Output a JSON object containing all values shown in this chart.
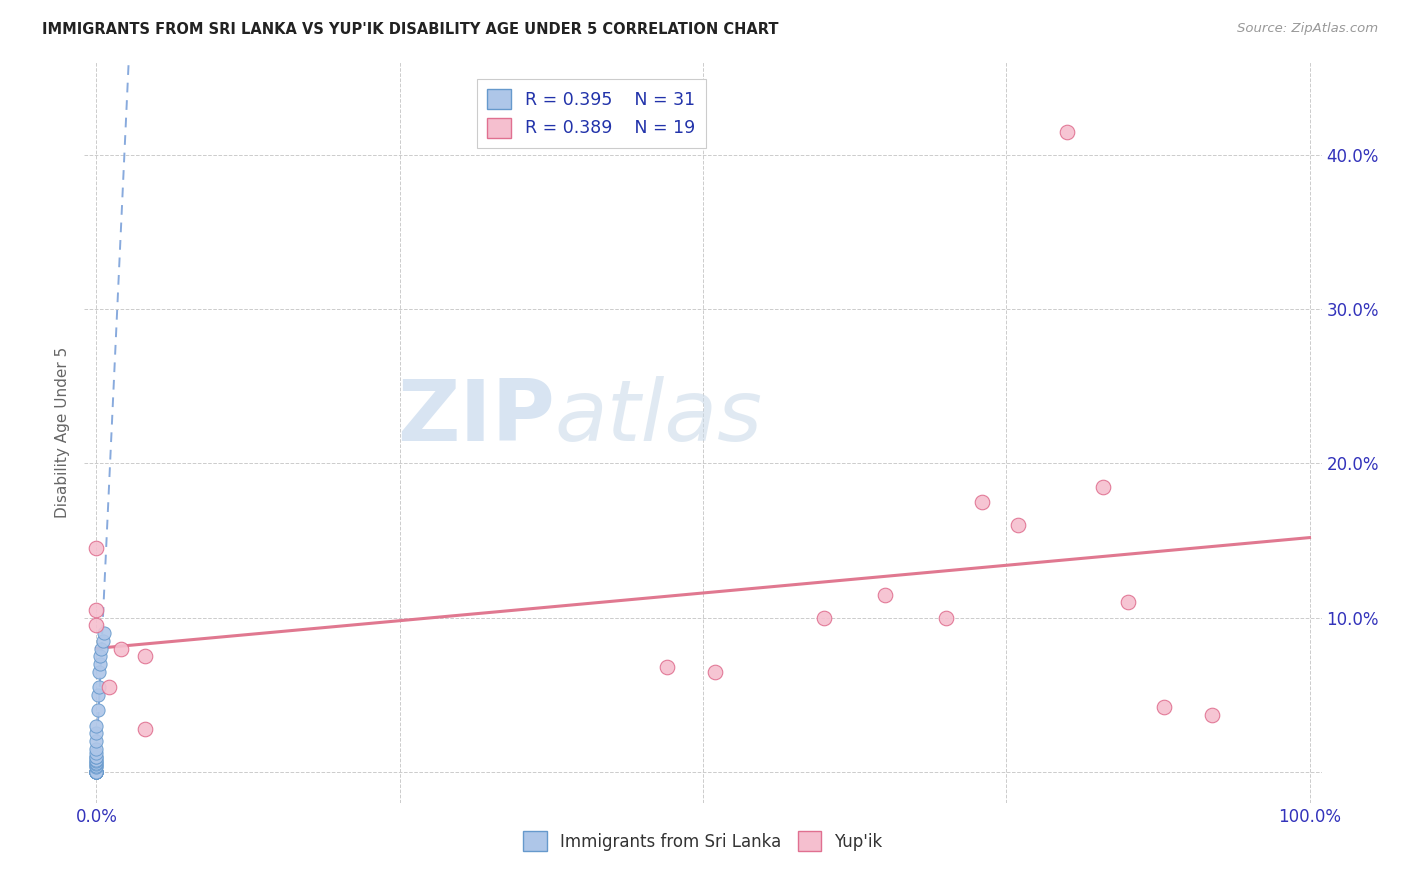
{
  "title": "IMMIGRANTS FROM SRI LANKA VS YUP'IK DISABILITY AGE UNDER 5 CORRELATION CHART",
  "source": "Source: ZipAtlas.com",
  "ylabel": "Disability Age Under 5",
  "xlim": [
    -0.01,
    1.01
  ],
  "ylim": [
    -0.02,
    0.46
  ],
  "watermark_zip": "ZIP",
  "watermark_atlas": "atlas",
  "sri_lanka_x": [
    0.0,
    0.0,
    0.0,
    0.0,
    0.0,
    0.0,
    0.0,
    0.0,
    0.0,
    0.0,
    0.0,
    0.0,
    0.0,
    0.0,
    0.0,
    0.0,
    0.0,
    0.0,
    0.0,
    0.0,
    0.0,
    0.0,
    0.001,
    0.001,
    0.002,
    0.002,
    0.003,
    0.003,
    0.004,
    0.005,
    0.006
  ],
  "sri_lanka_y": [
    0.0,
    0.0,
    0.0,
    0.0,
    0.0,
    0.0,
    0.0,
    0.0,
    0.0,
    0.003,
    0.004,
    0.005,
    0.006,
    0.007,
    0.008,
    0.01,
    0.01,
    0.012,
    0.015,
    0.02,
    0.025,
    0.03,
    0.04,
    0.05,
    0.055,
    0.065,
    0.07,
    0.075,
    0.08,
    0.085,
    0.09
  ],
  "yupik_x": [
    0.0,
    0.0,
    0.0,
    0.01,
    0.02,
    0.04,
    0.04,
    0.47,
    0.51,
    0.6,
    0.65,
    0.7,
    0.73,
    0.76,
    0.8,
    0.83,
    0.85,
    0.88,
    0.92
  ],
  "yupik_y": [
    0.095,
    0.105,
    0.145,
    0.055,
    0.08,
    0.028,
    0.075,
    0.068,
    0.065,
    0.1,
    0.115,
    0.1,
    0.175,
    0.16,
    0.415,
    0.185,
    0.11,
    0.042,
    0.037
  ],
  "sri_lanka_color": "#aec6e8",
  "sri_lanka_edge": "#6699cc",
  "yupik_color": "#f5bfcf",
  "yupik_edge": "#e07090",
  "trend_sl_color": "#88aadd",
  "trend_yp_color": "#e07890",
  "bg_color": "#ffffff",
  "grid_color": "#cccccc",
  "tick_color": "#3333bb",
  "title_color": "#222222",
  "source_color": "#999999",
  "ylabel_color": "#666666",
  "legend_label_color": "#2233aa",
  "watermark_zip_color": "#b8cfe8",
  "watermark_atlas_color": "#c8d8e8"
}
